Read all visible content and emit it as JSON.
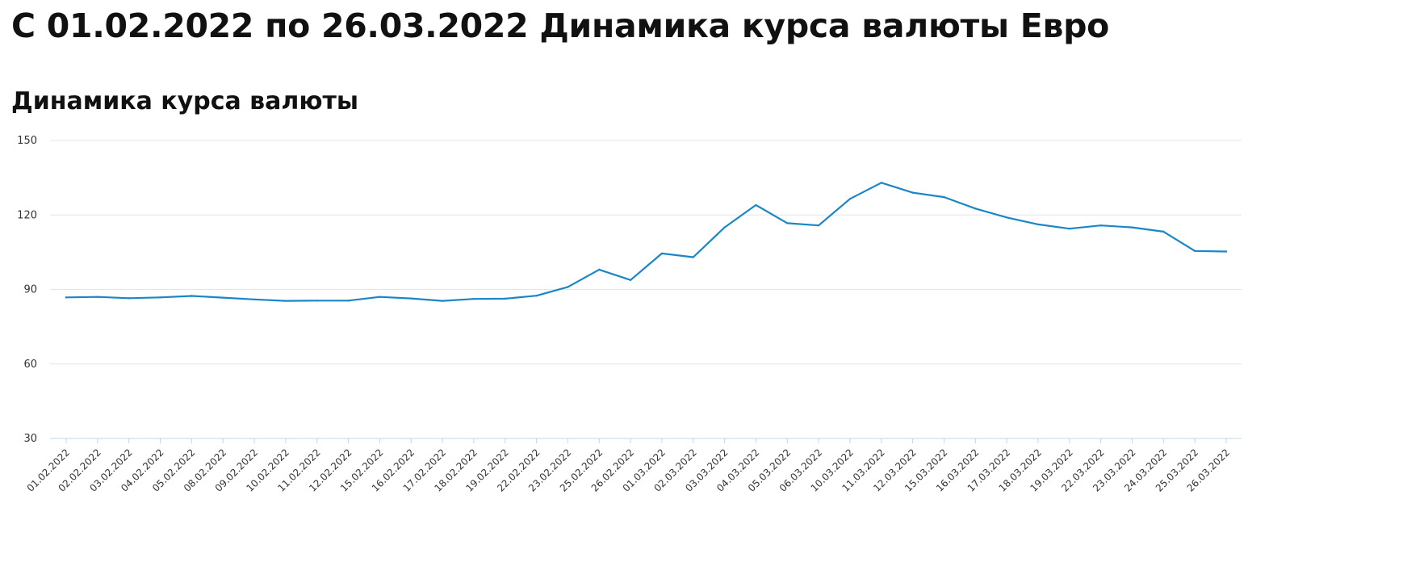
{
  "page": {
    "title": "С 01.02.2022 по 26.03.2022 Динамика курса валюты Евро",
    "section_title": "Динамика курса валюты"
  },
  "colors": {
    "line": "#1a86c8",
    "grid": "#e3e6ea",
    "axis": "#c5d4e6",
    "text": "#333333"
  },
  "chart_data": {
    "type": "line",
    "title": "Динамика курса валюты",
    "xlabel": "",
    "ylabel": "",
    "ylim": [
      30,
      150
    ],
    "yticks": [
      30,
      60,
      90,
      120,
      150
    ],
    "grid": true,
    "legend": "none",
    "categories": [
      "01.02.2022",
      "02.02.2022",
      "03.02.2022",
      "04.02.2022",
      "05.02.2022",
      "08.02.2022",
      "09.02.2022",
      "10.02.2022",
      "11.02.2022",
      "12.02.2022",
      "15.02.2022",
      "16.02.2022",
      "17.02.2022",
      "18.02.2022",
      "19.02.2022",
      "22.02.2022",
      "23.02.2022",
      "25.02.2022",
      "26.02.2022",
      "01.03.2022",
      "02.03.2022",
      "03.03.2022",
      "04.03.2022",
      "05.03.2022",
      "06.03.2022",
      "10.03.2022",
      "11.03.2022",
      "12.03.2022",
      "15.03.2022",
      "16.03.2022",
      "17.03.2022",
      "18.03.2022",
      "19.03.2022",
      "22.03.2022",
      "23.03.2022",
      "24.03.2022",
      "25.03.2022",
      "26.03.2022"
    ],
    "series": [
      {
        "values": [
          86.8,
          87.0,
          86.5,
          86.8,
          87.4,
          86.7,
          86.0,
          85.4,
          85.5,
          85.5,
          87.0,
          86.4,
          85.4,
          86.2,
          86.3,
          87.5,
          91.0,
          98.0,
          93.8,
          104.5,
          103.0,
          115.0,
          124.0,
          116.7,
          115.8,
          126.5,
          133.0,
          129.0,
          127.2,
          122.6,
          119.0,
          116.2,
          114.5,
          115.8,
          115.0,
          113.3,
          105.5,
          105.3
        ]
      }
    ]
  }
}
